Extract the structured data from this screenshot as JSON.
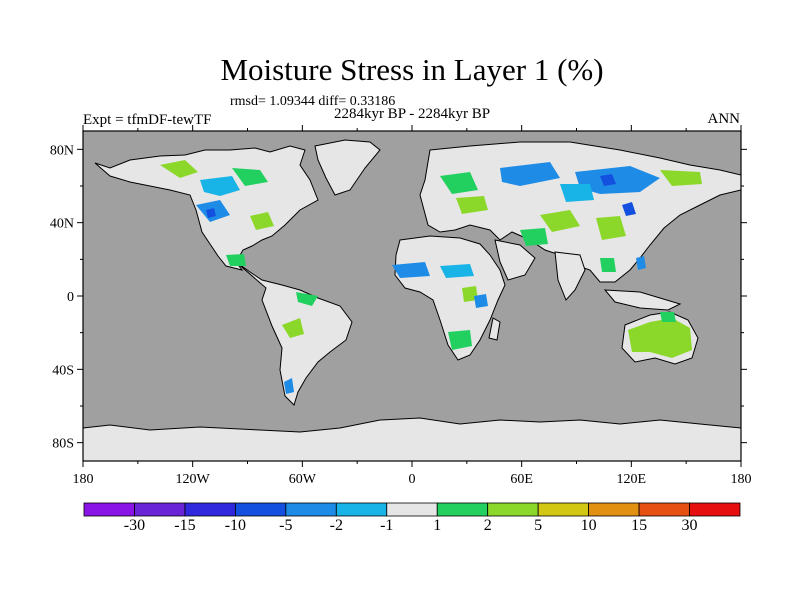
{
  "title": "Moisture Stress in Layer 1 (%)",
  "subtitle_stats": "rmsd= 1.09344 diff= 0.33186",
  "subtitle_period": "2284kyr BP - 2284kyr BP",
  "experiment_label": "Expt = tfmDF-tewTF",
  "season_label": "ANN",
  "x_ticks": [
    "180",
    "120W",
    "60W",
    "0",
    "60E",
    "120E",
    "180"
  ],
  "y_ticks": [
    "80N",
    "40N",
    "0",
    "40S",
    "80S"
  ],
  "colorbar": {
    "colors": [
      "#8a14e6",
      "#6a24d8",
      "#3028dc",
      "#1450e0",
      "#1e8ce6",
      "#18b4e8",
      "#e6e6e6",
      "#22d060",
      "#8cd82a",
      "#d2c814",
      "#e29010",
      "#e65010",
      "#e60e0e"
    ],
    "labels": [
      "-30",
      "-15",
      "-10",
      "-5",
      "-2",
      "-1",
      "1",
      "2",
      "5",
      "10",
      "15",
      "30"
    ]
  },
  "colors": {
    "ocean": "#a0a0a0",
    "land_neutral": "#e6e6e6",
    "coast": "#000000"
  }
}
